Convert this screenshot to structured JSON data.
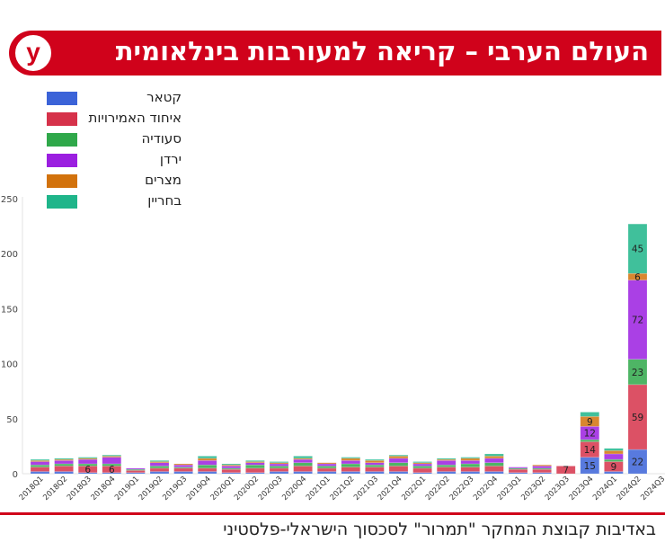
{
  "header": {
    "title": "העולם הערבי – קריאה למעורבות בינלאומית",
    "logo_letter": "y"
  },
  "credit": "באדיבות קבוצת המחקר \"תמרור\" לסכסוך הישראלי-פלסטיני",
  "colors": {
    "brand": "#d0021b"
  },
  "chart_data": {
    "type": "bar",
    "stacked": true,
    "title": "",
    "xlabel": "",
    "ylabel": "",
    "ylim": [
      0,
      250
    ],
    "yticks": [
      0,
      50,
      100,
      150,
      200,
      250
    ],
    "legend_position": "top-left",
    "categories": [
      "2018Q1",
      "2018Q2",
      "2018Q3",
      "2018Q4",
      "2019Q1",
      "2019Q2",
      "2019Q3",
      "2019Q4",
      "2020Q1",
      "2020Q2",
      "2020Q3",
      "2020Q4",
      "2021Q1",
      "2021Q2",
      "2021Q3",
      "2021Q4",
      "2022Q1",
      "2022Q2",
      "2022Q3",
      "2022Q4",
      "2023Q1",
      "2023Q2",
      "2023Q3",
      "2023Q4",
      "2024Q1",
      "2024Q2",
      "2024Q3"
    ],
    "series": [
      {
        "name": "קטאר",
        "color": "#3b63d8",
        "values": [
          2,
          2,
          1,
          1,
          1,
          2,
          2,
          2,
          1,
          1,
          2,
          2,
          2,
          2,
          2,
          2,
          1,
          2,
          2,
          2,
          1,
          1,
          0,
          15,
          2,
          22,
          0
        ]
      },
      {
        "name": "איחוד האמירויות",
        "color": "#d6324a",
        "values": [
          4,
          5,
          6,
          6,
          2,
          3,
          3,
          3,
          3,
          4,
          3,
          5,
          3,
          4,
          4,
          5,
          4,
          4,
          4,
          5,
          3,
          3,
          7,
          14,
          9,
          59,
          0
        ]
      },
      {
        "name": "סעודיה",
        "color": "#2fa84a",
        "values": [
          2,
          2,
          2,
          2,
          1,
          2,
          1,
          3,
          1,
          3,
          2,
          3,
          2,
          3,
          2,
          3,
          2,
          2,
          3,
          3,
          1,
          1,
          0,
          2,
          2,
          23,
          0
        ]
      },
      {
        "name": "ירדן",
        "color": "#9b1fe0",
        "values": [
          3,
          3,
          4,
          6,
          1,
          3,
          2,
          4,
          2,
          2,
          2,
          3,
          2,
          3,
          2,
          4,
          2,
          4,
          3,
          4,
          1,
          2,
          0,
          12,
          5,
          72,
          0
        ]
      },
      {
        "name": "מצרים",
        "color": "#d2720c",
        "values": [
          1,
          1,
          1,
          1,
          0,
          1,
          1,
          2,
          1,
          1,
          1,
          1,
          1,
          2,
          2,
          2,
          1,
          1,
          2,
          2,
          0,
          1,
          0,
          9,
          3,
          6,
          0
        ]
      },
      {
        "name": "בחריין",
        "color": "#1fb58a",
        "values": [
          1,
          1,
          1,
          1,
          0,
          1,
          0,
          2,
          1,
          1,
          1,
          2,
          0,
          1,
          1,
          1,
          1,
          1,
          1,
          2,
          0,
          0,
          0,
          4,
          2,
          45,
          0
        ]
      }
    ],
    "data_labels": [
      {
        "category": "2018Q3",
        "series": "איחוד האמירויות",
        "text": "6"
      },
      {
        "category": "2018Q4",
        "series": "איחוד האמירויות",
        "text": "6"
      },
      {
        "category": "2023Q3",
        "series": "איחוד האמירויות",
        "text": "7"
      },
      {
        "category": "2023Q4",
        "series": "קטאר",
        "text": "15"
      },
      {
        "category": "2023Q4",
        "series": "איחוד האמירויות",
        "text": "14"
      },
      {
        "category": "2023Q4",
        "series": "ירדן",
        "text": "12"
      },
      {
        "category": "2023Q4",
        "series": "מצרים",
        "text": "9"
      },
      {
        "category": "2024Q1",
        "series": "איחוד האמירויות",
        "text": "9"
      },
      {
        "category": "2024Q2",
        "series": "קטאר",
        "text": "22"
      },
      {
        "category": "2024Q2",
        "series": "איחוד האמירויות",
        "text": "59"
      },
      {
        "category": "2024Q2",
        "series": "סעודיה",
        "text": "23"
      },
      {
        "category": "2024Q2",
        "series": "ירדן",
        "text": "72"
      },
      {
        "category": "2024Q2",
        "series": "מצרים",
        "text": "6"
      },
      {
        "category": "2024Q2",
        "series": "בחריין",
        "text": "45"
      }
    ]
  }
}
